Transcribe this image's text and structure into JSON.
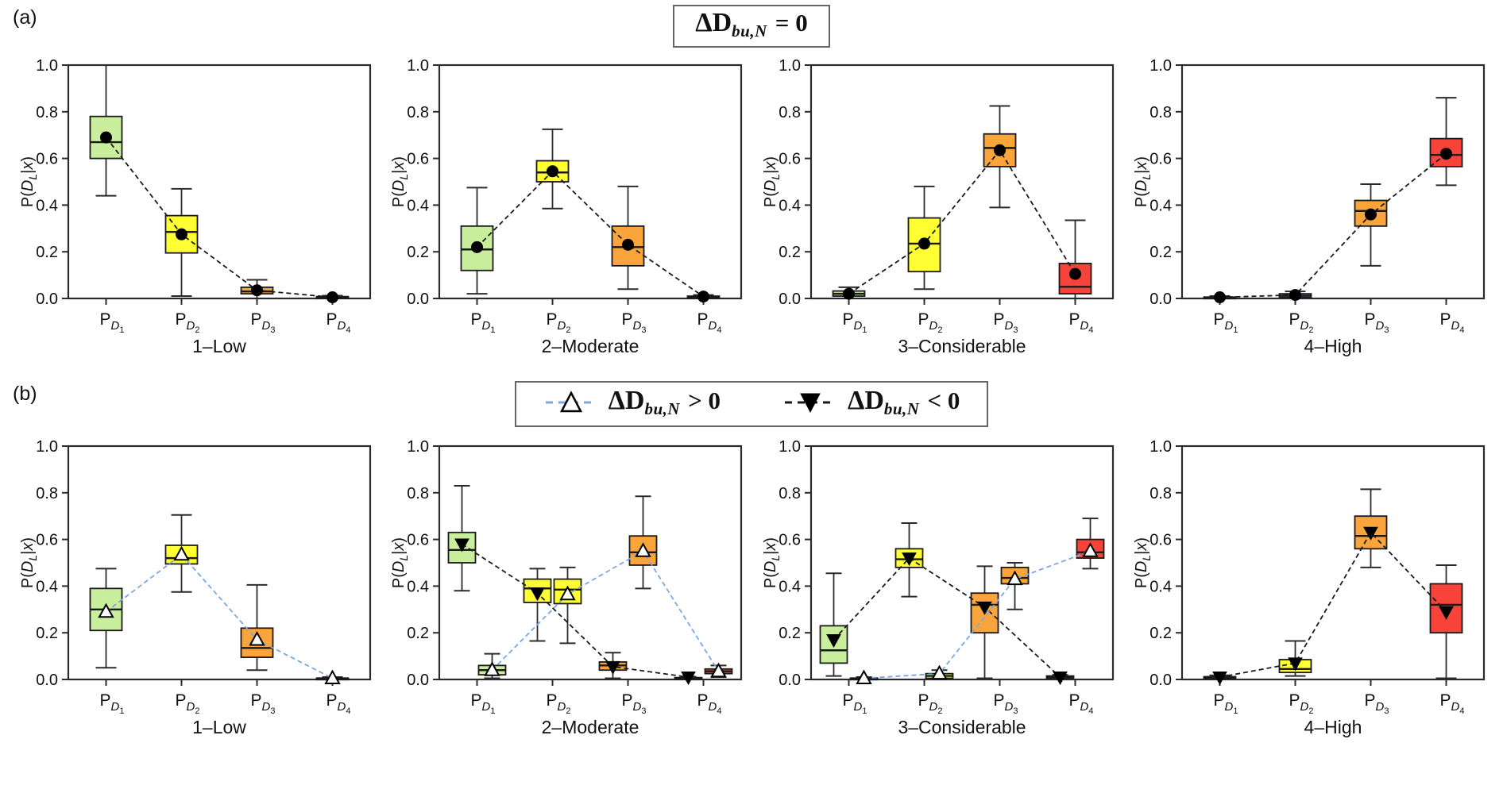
{
  "panel_a": {
    "label": "(a)",
    "title_main": "ΔD",
    "title_sub": "bu,N",
    "title_rel": "= 0"
  },
  "panel_b": {
    "label": "(b)",
    "legend": [
      {
        "marker": "triangle-up-open",
        "line_color": "#7aa7e6",
        "main": "ΔD",
        "sub": "bu,N",
        "rel": "> 0"
      },
      {
        "marker": "triangle-down-filled",
        "line_color": "#1a1a1a",
        "main": "ΔD",
        "sub": "bu,N",
        "rel": "< 0"
      }
    ]
  },
  "chart_data": {
    "type": "boxplot",
    "ylim": [
      0,
      1
    ],
    "yticks": [
      0.0,
      0.2,
      0.4,
      0.6,
      0.8,
      1.0
    ],
    "ylabel_segments": [
      {
        "t": "P("
      },
      {
        "t": "D",
        "i": true
      },
      {
        "t": "L",
        "i": true,
        "sub": true
      },
      {
        "t": "|"
      },
      {
        "t": "x",
        "i": true
      },
      {
        "t": ")"
      }
    ],
    "categories": [
      {
        "base": "P",
        "sub": "D",
        "idx": "1"
      },
      {
        "base": "P",
        "sub": "D",
        "idx": "2"
      },
      {
        "base": "P",
        "sub": "D",
        "idx": "3"
      },
      {
        "base": "P",
        "sub": "D",
        "idx": "4"
      }
    ],
    "colors": {
      "box_fill": [
        "#c9ef9e",
        "#ffff33",
        "#f9a53c",
        "#f8433a"
      ],
      "pos_line": "#7aa7e6",
      "neg_line": "#1a1a1a",
      "mean_line": "#1a1a1a",
      "frame": "#2b2b2b"
    },
    "panels": [
      {
        "id": "a",
        "subplots": [
          {
            "xlabel": "1–Low",
            "series": [
              {
                "key": "mean",
                "marker": "circle",
                "line_color": "#1a1a1a",
                "offset": 0,
                "boxes": [
                  {
                    "lo": 0.44,
                    "q1": 0.6,
                    "med": 0.67,
                    "q3": 0.78,
                    "hi": 1.0,
                    "pt": 0.69
                  },
                  {
                    "lo": 0.01,
                    "q1": 0.195,
                    "med": 0.285,
                    "q3": 0.355,
                    "hi": 0.47,
                    "pt": 0.275
                  },
                  {
                    "lo": 0.0,
                    "q1": 0.02,
                    "med": 0.03,
                    "q3": 0.048,
                    "hi": 0.08,
                    "pt": 0.035
                  },
                  {
                    "lo": 0.0,
                    "q1": 0.001,
                    "med": 0.004,
                    "q3": 0.008,
                    "hi": 0.012,
                    "pt": 0.005
                  }
                ]
              }
            ]
          },
          {
            "xlabel": "2–Moderate",
            "series": [
              {
                "key": "mean",
                "marker": "circle",
                "line_color": "#1a1a1a",
                "offset": 0,
                "boxes": [
                  {
                    "lo": 0.02,
                    "q1": 0.12,
                    "med": 0.21,
                    "q3": 0.31,
                    "hi": 0.475,
                    "pt": 0.22
                  },
                  {
                    "lo": 0.385,
                    "q1": 0.5,
                    "med": 0.54,
                    "q3": 0.59,
                    "hi": 0.725,
                    "pt": 0.545
                  },
                  {
                    "lo": 0.04,
                    "q1": 0.14,
                    "med": 0.22,
                    "q3": 0.31,
                    "hi": 0.48,
                    "pt": 0.23
                  },
                  {
                    "lo": 0.0,
                    "q1": 0.002,
                    "med": 0.005,
                    "q3": 0.01,
                    "hi": 0.015,
                    "pt": 0.008
                  }
                ]
              }
            ]
          },
          {
            "xlabel": "3–Considerable",
            "series": [
              {
                "key": "mean",
                "marker": "circle",
                "line_color": "#1a1a1a",
                "offset": 0,
                "boxes": [
                  {
                    "lo": 0.0,
                    "q1": 0.01,
                    "med": 0.02,
                    "q3": 0.032,
                    "hi": 0.048,
                    "pt": 0.02
                  },
                  {
                    "lo": 0.04,
                    "q1": 0.115,
                    "med": 0.235,
                    "q3": 0.345,
                    "hi": 0.48,
                    "pt": 0.235
                  },
                  {
                    "lo": 0.39,
                    "q1": 0.565,
                    "med": 0.645,
                    "q3": 0.705,
                    "hi": 0.825,
                    "pt": 0.635
                  },
                  {
                    "lo": 0.0,
                    "q1": 0.02,
                    "med": 0.05,
                    "q3": 0.15,
                    "hi": 0.335,
                    "pt": 0.105
                  }
                ]
              }
            ]
          },
          {
            "xlabel": "4–High",
            "series": [
              {
                "key": "mean",
                "marker": "circle",
                "line_color": "#1a1a1a",
                "offset": 0,
                "boxes": [
                  {
                    "lo": 0.0,
                    "q1": 0.001,
                    "med": 0.003,
                    "q3": 0.006,
                    "hi": 0.01,
                    "pt": 0.005
                  },
                  {
                    "lo": 0.0,
                    "q1": 0.005,
                    "med": 0.012,
                    "q3": 0.02,
                    "hi": 0.03,
                    "pt": 0.015
                  },
                  {
                    "lo": 0.14,
                    "q1": 0.31,
                    "med": 0.375,
                    "q3": 0.42,
                    "hi": 0.49,
                    "pt": 0.36
                  },
                  {
                    "lo": 0.485,
                    "q1": 0.565,
                    "med": 0.615,
                    "q3": 0.685,
                    "hi": 0.86,
                    "pt": 0.62
                  }
                ]
              }
            ]
          }
        ]
      },
      {
        "id": "b",
        "subplots": [
          {
            "xlabel": "1–Low",
            "series": [
              {
                "key": "pos",
                "marker": "triangle-up-open",
                "line_color": "#7aa7e6",
                "offset": 0,
                "boxes": [
                  {
                    "lo": 0.05,
                    "q1": 0.21,
                    "med": 0.3,
                    "q3": 0.39,
                    "hi": 0.475,
                    "pt": 0.29
                  },
                  {
                    "lo": 0.375,
                    "q1": 0.495,
                    "med": 0.52,
                    "q3": 0.575,
                    "hi": 0.705,
                    "pt": 0.535
                  },
                  {
                    "lo": 0.04,
                    "q1": 0.095,
                    "med": 0.135,
                    "q3": 0.22,
                    "hi": 0.405,
                    "pt": 0.17
                  },
                  {
                    "lo": 0.0,
                    "q1": 0.001,
                    "med": 0.003,
                    "q3": 0.006,
                    "hi": 0.01,
                    "pt": 0.005
                  }
                ]
              }
            ]
          },
          {
            "xlabel": "2–Moderate",
            "series": [
              {
                "key": "neg",
                "marker": "triangle-down-filled",
                "line_color": "#1a1a1a",
                "offset": -1,
                "boxes": [
                  {
                    "lo": 0.38,
                    "q1": 0.5,
                    "med": 0.555,
                    "q3": 0.63,
                    "hi": 0.83,
                    "pt": 0.58
                  },
                  {
                    "lo": 0.165,
                    "q1": 0.33,
                    "med": 0.39,
                    "q3": 0.43,
                    "hi": 0.475,
                    "pt": 0.37
                  },
                  {
                    "lo": 0.005,
                    "q1": 0.04,
                    "med": 0.06,
                    "q3": 0.075,
                    "hi": 0.115,
                    "pt": 0.055
                  },
                  {
                    "lo": 0.0,
                    "q1": 0.002,
                    "med": 0.005,
                    "q3": 0.008,
                    "hi": 0.012,
                    "pt": 0.01
                  }
                ]
              },
              {
                "key": "pos",
                "marker": "triangle-up-open",
                "line_color": "#7aa7e6",
                "offset": 1,
                "boxes": [
                  {
                    "lo": 0.005,
                    "q1": 0.02,
                    "med": 0.04,
                    "q3": 0.06,
                    "hi": 0.11,
                    "pt": 0.04
                  },
                  {
                    "lo": 0.155,
                    "q1": 0.325,
                    "med": 0.385,
                    "q3": 0.43,
                    "hi": 0.48,
                    "pt": 0.365
                  },
                  {
                    "lo": 0.39,
                    "q1": 0.49,
                    "med": 0.545,
                    "q3": 0.615,
                    "hi": 0.785,
                    "pt": 0.55
                  },
                  {
                    "lo": 0.01,
                    "q1": 0.025,
                    "med": 0.035,
                    "q3": 0.045,
                    "hi": 0.06,
                    "pt": 0.035
                  }
                ]
              }
            ]
          },
          {
            "xlabel": "3–Considerable",
            "series": [
              {
                "key": "neg",
                "marker": "triangle-down-filled",
                "line_color": "#1a1a1a",
                "offset": -1,
                "boxes": [
                  {
                    "lo": 0.015,
                    "q1": 0.07,
                    "med": 0.125,
                    "q3": 0.23,
                    "hi": 0.455,
                    "pt": 0.17
                  },
                  {
                    "lo": 0.355,
                    "q1": 0.48,
                    "med": 0.515,
                    "q3": 0.56,
                    "hi": 0.67,
                    "pt": 0.52
                  },
                  {
                    "lo": 0.005,
                    "q1": 0.2,
                    "med": 0.32,
                    "q3": 0.37,
                    "hi": 0.485,
                    "pt": 0.31
                  },
                  {
                    "lo": 0.0,
                    "q1": 0.005,
                    "med": 0.01,
                    "q3": 0.015,
                    "hi": 0.02,
                    "pt": 0.01
                  }
                ]
              },
              {
                "key": "pos",
                "marker": "triangle-up-open",
                "line_color": "#7aa7e6",
                "offset": 1,
                "boxes": [
                  {
                    "lo": 0.0,
                    "q1": 0.001,
                    "med": 0.003,
                    "q3": 0.006,
                    "hi": 0.01,
                    "pt": 0.005
                  },
                  {
                    "lo": 0.0,
                    "q1": 0.005,
                    "med": 0.015,
                    "q3": 0.025,
                    "hi": 0.04,
                    "pt": 0.025
                  },
                  {
                    "lo": 0.3,
                    "q1": 0.41,
                    "med": 0.435,
                    "q3": 0.48,
                    "hi": 0.5,
                    "pt": 0.43
                  },
                  {
                    "lo": 0.475,
                    "q1": 0.52,
                    "med": 0.545,
                    "q3": 0.6,
                    "hi": 0.69,
                    "pt": 0.55
                  }
                ]
              }
            ]
          },
          {
            "xlabel": "4–High",
            "series": [
              {
                "key": "neg",
                "marker": "triangle-down-filled",
                "line_color": "#1a1a1a",
                "offset": 0,
                "boxes": [
                  {
                    "lo": 0.0,
                    "q1": 0.003,
                    "med": 0.006,
                    "q3": 0.012,
                    "hi": 0.018,
                    "pt": 0.01
                  },
                  {
                    "lo": 0.015,
                    "q1": 0.03,
                    "med": 0.045,
                    "q3": 0.085,
                    "hi": 0.165,
                    "pt": 0.07
                  },
                  {
                    "lo": 0.48,
                    "q1": 0.56,
                    "med": 0.615,
                    "q3": 0.7,
                    "hi": 0.815,
                    "pt": 0.63
                  },
                  {
                    "lo": 0.005,
                    "q1": 0.2,
                    "med": 0.32,
                    "q3": 0.41,
                    "hi": 0.49,
                    "pt": 0.29
                  }
                ]
              }
            ]
          }
        ]
      }
    ]
  }
}
